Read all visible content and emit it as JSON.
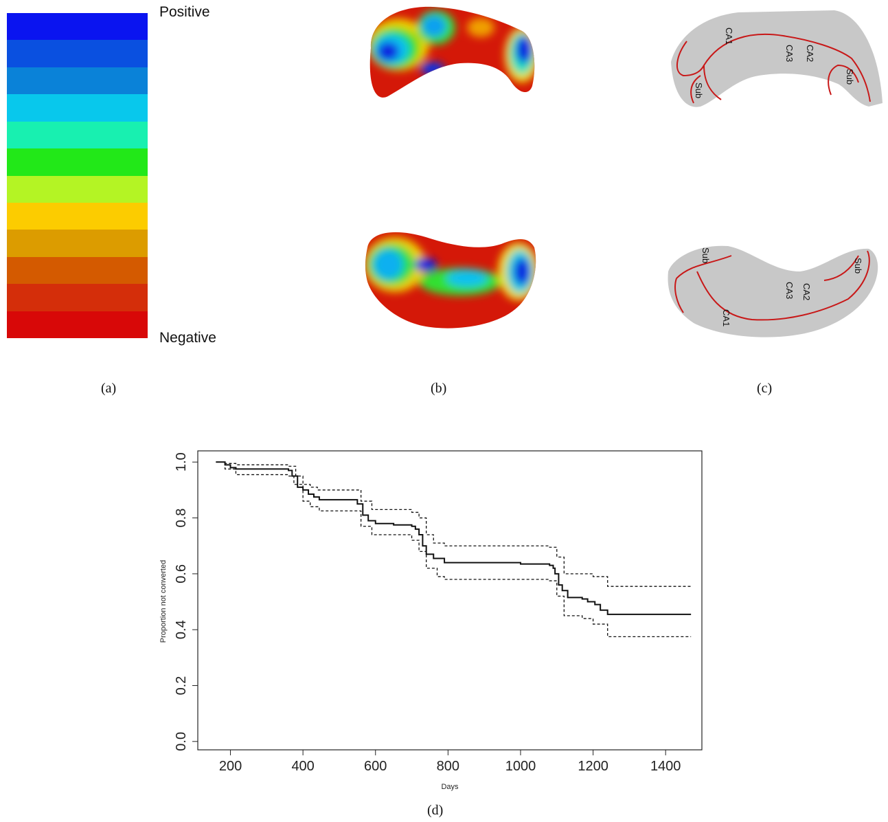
{
  "colorbar": {
    "top_label": "Positive",
    "bottom_label": "Negative",
    "colors": [
      "#0a14f0",
      "#0a50e0",
      "#0a82d8",
      "#08c8ec",
      "#18f0b0",
      "#22e818",
      "#b4f424",
      "#fccc00",
      "#dc9c00",
      "#d45a00",
      "#d42e0a",
      "#d80808"
    ]
  },
  "panel_c": {
    "top_labels": [
      "CA1",
      "CA3",
      "CA2",
      "Sub",
      "Sub"
    ],
    "bottom_labels": [
      "Sub",
      "Sub",
      "CA2",
      "CA3",
      "CA1"
    ]
  },
  "captions": {
    "a": "(a)",
    "b": "(b)",
    "c": "(c)",
    "d": "(d)"
  },
  "chart_data": {
    "type": "line",
    "title": "",
    "xlabel": "Days",
    "ylabel": "Proportion not converted",
    "xlim": [
      110,
      1500
    ],
    "ylim": [
      -0.03,
      1.04
    ],
    "xticks": [
      "200",
      "400",
      "600",
      "800",
      "1000",
      "1200",
      "1400"
    ],
    "yticks": [
      "0.0",
      "0.2",
      "0.4",
      "0.6",
      "0.8",
      "1.0"
    ],
    "series": [
      {
        "style": "solid",
        "points": [
          [
            160,
            1.0
          ],
          [
            175,
            1.0
          ],
          [
            185,
            0.99
          ],
          [
            200,
            0.98
          ],
          [
            215,
            0.975
          ],
          [
            360,
            0.97
          ],
          [
            370,
            0.95
          ],
          [
            385,
            0.91
          ],
          [
            400,
            0.9
          ],
          [
            415,
            0.885
          ],
          [
            430,
            0.875
          ],
          [
            445,
            0.865
          ],
          [
            540,
            0.865
          ],
          [
            550,
            0.85
          ],
          [
            565,
            0.81
          ],
          [
            580,
            0.79
          ],
          [
            600,
            0.78
          ],
          [
            650,
            0.775
          ],
          [
            700,
            0.77
          ],
          [
            710,
            0.76
          ],
          [
            720,
            0.74
          ],
          [
            730,
            0.7
          ],
          [
            740,
            0.67
          ],
          [
            760,
            0.655
          ],
          [
            790,
            0.64
          ],
          [
            1000,
            0.635
          ],
          [
            1080,
            0.63
          ],
          [
            1090,
            0.62
          ],
          [
            1095,
            0.6
          ],
          [
            1105,
            0.56
          ],
          [
            1115,
            0.54
          ],
          [
            1130,
            0.515
          ],
          [
            1170,
            0.51
          ],
          [
            1185,
            0.5
          ],
          [
            1205,
            0.49
          ],
          [
            1220,
            0.47
          ],
          [
            1240,
            0.455
          ],
          [
            1470,
            0.455
          ]
        ]
      },
      {
        "style": "dashed",
        "points": [
          [
            160,
            1.0
          ],
          [
            175,
            1.0
          ],
          [
            185,
            0.995
          ],
          [
            215,
            0.99
          ],
          [
            360,
            0.985
          ],
          [
            380,
            0.95
          ],
          [
            400,
            0.92
          ],
          [
            420,
            0.91
          ],
          [
            440,
            0.9
          ],
          [
            540,
            0.9
          ],
          [
            560,
            0.86
          ],
          [
            590,
            0.83
          ],
          [
            700,
            0.82
          ],
          [
            720,
            0.8
          ],
          [
            740,
            0.74
          ],
          [
            760,
            0.71
          ],
          [
            790,
            0.7
          ],
          [
            1080,
            0.695
          ],
          [
            1100,
            0.66
          ],
          [
            1120,
            0.6
          ],
          [
            1200,
            0.59
          ],
          [
            1240,
            0.555
          ],
          [
            1470,
            0.55
          ]
        ]
      },
      {
        "style": "dashed",
        "points": [
          [
            160,
            1.0
          ],
          [
            175,
            1.0
          ],
          [
            185,
            0.975
          ],
          [
            215,
            0.955
          ],
          [
            360,
            0.95
          ],
          [
            375,
            0.92
          ],
          [
            400,
            0.86
          ],
          [
            420,
            0.84
          ],
          [
            445,
            0.825
          ],
          [
            540,
            0.825
          ],
          [
            560,
            0.77
          ],
          [
            590,
            0.74
          ],
          [
            700,
            0.72
          ],
          [
            720,
            0.68
          ],
          [
            740,
            0.62
          ],
          [
            770,
            0.59
          ],
          [
            790,
            0.58
          ],
          [
            1080,
            0.575
          ],
          [
            1100,
            0.52
          ],
          [
            1120,
            0.45
          ],
          [
            1170,
            0.44
          ],
          [
            1200,
            0.42
          ],
          [
            1240,
            0.375
          ],
          [
            1470,
            0.375
          ]
        ]
      }
    ]
  }
}
